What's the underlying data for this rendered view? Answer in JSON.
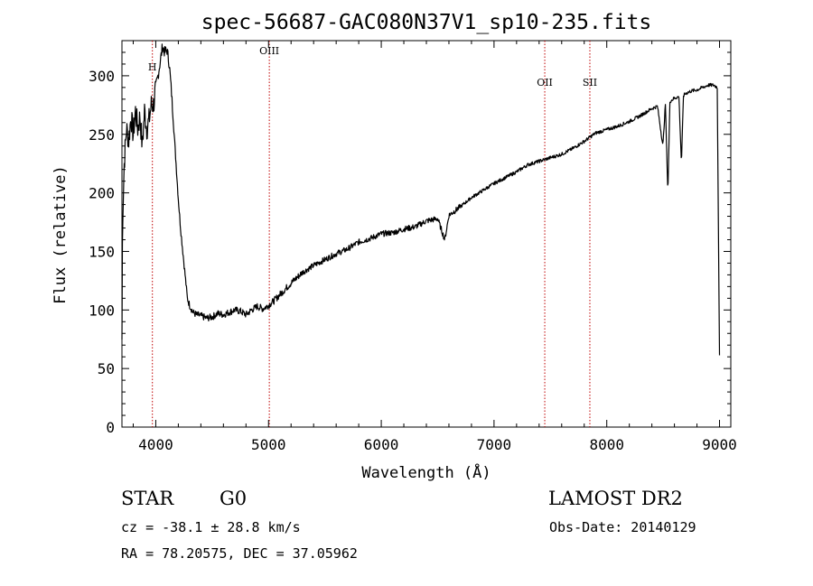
{
  "title": "spec-56687-GAC080N37V1_sp10-235.fits",
  "footer": {
    "class_label": "STAR",
    "subclass_label": "G0",
    "survey_label": "LAMOST DR2",
    "cz_text": "cz = -38.1 ± 28.8 km/s",
    "obs_date_text": "Obs-Date: 20140129",
    "radec_text": "RA =  78.20575, DEC =  37.05962"
  },
  "chart_data": {
    "type": "line",
    "title": "spec-56687-GAC080N37V1_sp10-235.fits",
    "xlabel": "Wavelength (Å)",
    "ylabel": "Flux (relative)",
    "xlim": [
      3700,
      9100
    ],
    "ylim": [
      0,
      330
    ],
    "xticks": [
      4000,
      5000,
      6000,
      7000,
      8000,
      9000
    ],
    "yticks": [
      0,
      50,
      100,
      150,
      200,
      250,
      300
    ],
    "grid": false,
    "line_color": "#000000",
    "marker_color": "#c00000",
    "lines": [
      {
        "name": "H",
        "wavelength": 3970
      },
      {
        "name": "OIII",
        "wavelength": 5007
      },
      {
        "name": "OII",
        "wavelength": 7450
      },
      {
        "name": "SII",
        "wavelength": 7850
      }
    ],
    "series": [
      {
        "x": [
          3700,
          3705,
          3720,
          3740,
          3760,
          3780,
          3800,
          3820,
          3840,
          3860,
          3880,
          3900,
          3920,
          3940,
          3960,
          3980,
          4000,
          4020,
          4040,
          4060,
          4080,
          4100,
          4120,
          4140,
          4160,
          4180,
          4200,
          4220,
          4240,
          4260,
          4280,
          4300,
          4330,
          4360,
          4400,
          4450,
          4500,
          4550,
          4600,
          4650,
          4700,
          4750,
          4800,
          4850,
          4900,
          4950,
          5000,
          5050,
          5100,
          5200,
          5300,
          5400,
          5500,
          5600,
          5700,
          5800,
          5900,
          6000,
          6100,
          6200,
          6300,
          6400,
          6500,
          6563,
          6600,
          6700,
          6800,
          6900,
          7000,
          7100,
          7200,
          7300,
          7400,
          7500,
          7600,
          7700,
          7800,
          7900,
          8000,
          8100,
          8200,
          8300,
          8400,
          8450,
          8498,
          8520,
          8542,
          8560,
          8600,
          8640,
          8662,
          8680,
          8700,
          8750,
          8800,
          8850,
          8900,
          8950,
          8980,
          9000
        ],
        "values": [
          75,
          175,
          225,
          255,
          245,
          265,
          250,
          270,
          255,
          265,
          240,
          270,
          255,
          262,
          275,
          275,
          290,
          300,
          312,
          325,
          320,
          322,
          310,
          285,
          255,
          225,
          195,
          170,
          150,
          130,
          110,
          104,
          98,
          96,
          95,
          93,
          94,
          97,
          96,
          98,
          100,
          99,
          96,
          100,
          103,
          101,
          104,
          108,
          113,
          123,
          132,
          138,
          143,
          148,
          152,
          158,
          161,
          165,
          166,
          169,
          171,
          176,
          178,
          160,
          181,
          188,
          196,
          202,
          208,
          213,
          218,
          224,
          227,
          230,
          233,
          238,
          244,
          251,
          254,
          257,
          261,
          266,
          272,
          274,
          240,
          276,
          200,
          278,
          281,
          282,
          225,
          283,
          285,
          287,
          288,
          290,
          292,
          292,
          290,
          60
        ]
      }
    ]
  }
}
